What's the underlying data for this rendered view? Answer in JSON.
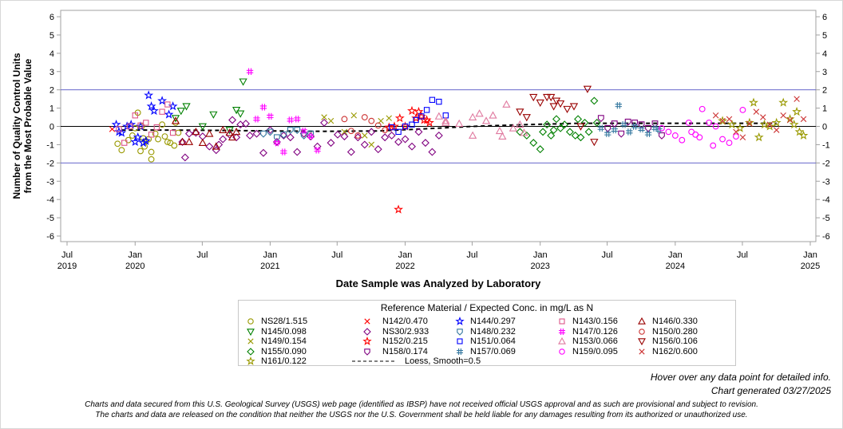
{
  "chart_data": {
    "type": "scatter",
    "title": "",
    "xlabel": "Date Sample was Analyzed by Laboratory",
    "ylabel": [
      "Number of Quality Control Units",
      "from the Most Probable Value"
    ],
    "ylim": [
      -6,
      6
    ],
    "xlim": [
      "2019-07-01",
      "2025-01-01"
    ],
    "y_ticks": [
      6,
      5,
      4,
      3,
      2,
      1,
      0,
      -1,
      -2,
      -3,
      -4,
      -5,
      -6
    ],
    "x_ticks": [
      {
        "date": "2019-07-01",
        "label1": "Jul",
        "label2": "2019"
      },
      {
        "date": "2020-01-01",
        "label1": "Jan",
        "label2": "2020"
      },
      {
        "date": "2020-07-01",
        "label1": "Jul",
        "label2": ""
      },
      {
        "date": "2021-01-01",
        "label1": "Jan",
        "label2": "2021"
      },
      {
        "date": "2021-07-01",
        "label1": "Jul",
        "label2": ""
      },
      {
        "date": "2022-01-01",
        "label1": "Jan",
        "label2": "2022"
      },
      {
        "date": "2022-07-01",
        "label1": "Jul",
        "label2": ""
      },
      {
        "date": "2023-01-01",
        "label1": "Jan",
        "label2": "2023"
      },
      {
        "date": "2023-07-01",
        "label1": "Jul",
        "label2": ""
      },
      {
        "date": "2024-01-01",
        "label1": "Jan",
        "label2": "2024"
      },
      {
        "date": "2024-07-01",
        "label1": "Jul",
        "label2": ""
      },
      {
        "date": "2025-01-01",
        "label1": "Jan",
        "label2": "2025"
      }
    ],
    "reference_lines": [
      {
        "y": 2,
        "color": "#6666cc"
      },
      {
        "y": 0,
        "color": "#000000"
      },
      {
        "y": -2,
        "color": "#6666cc"
      }
    ],
    "legend_title": "Reference Material / Expected Conc. in mg/L as N",
    "legend_placement": "bottom-center",
    "loess": {
      "name": "Loess, Smooth=0.5",
      "x": [
        2019.9,
        2020.2,
        2020.6,
        2021.0,
        2021.4,
        2021.8,
        2022.1,
        2022.5,
        2022.9,
        2023.3,
        2023.7,
        2024.1,
        2024.5,
        2024.75
      ],
      "y": [
        -0.2,
        -0.2,
        -0.22,
        -0.25,
        -0.27,
        -0.25,
        -0.15,
        0.0,
        0.1,
        0.17,
        0.17,
        0.17,
        0.17,
        0.17
      ]
    },
    "series": [
      {
        "name": "NS28/1.515",
        "marker": "circle",
        "color": "#999900",
        "x": [
          2019.87,
          2019.9,
          2019.95,
          2019.98,
          2020.0,
          2020.02,
          2020.04,
          2020.06,
          2020.07,
          2020.1,
          2020.12,
          2020.12,
          2020.15,
          2020.17,
          2020.2,
          2020.22,
          2020.24,
          2020.26,
          2020.29,
          2020.3,
          2020.32,
          2020.08,
          2020.05
        ],
        "y": [
          -0.95,
          -1.3,
          -0.75,
          -0.5,
          -0.1,
          0.75,
          -1.35,
          -0.65,
          -1.1,
          -0.7,
          -1.4,
          -1.8,
          -0.4,
          -0.7,
          0.1,
          -0.55,
          -0.85,
          -0.9,
          -1.05,
          0.2,
          -0.35,
          -0.8,
          0.0
        ]
      },
      {
        "name": "N145/0.098",
        "marker": "triangle-down",
        "color": "#008000",
        "x": [
          2020.3,
          2020.34,
          2020.38,
          2020.5,
          2020.58,
          2020.7,
          2020.75,
          2020.78,
          2020.8
        ],
        "y": [
          0.45,
          0.85,
          1.1,
          0.0,
          0.65,
          -0.2,
          0.9,
          0.7,
          2.45
        ]
      },
      {
        "name": "N149/0.154",
        "marker": "x",
        "color": "#999900",
        "x": [
          2021.4,
          2021.45,
          2021.55,
          2021.62,
          2021.7,
          2021.75,
          2021.82,
          2021.88
        ],
        "y": [
          0.5,
          0.3,
          -0.3,
          0.6,
          -0.5,
          -1.0,
          0.3,
          0.45
        ]
      },
      {
        "name": "N155/0.090",
        "marker": "diamond",
        "color": "#008000",
        "x": [
          2022.85,
          2022.9,
          2022.95,
          2023.0,
          2023.02,
          2023.05,
          2023.08,
          2023.1,
          2023.12,
          2023.15,
          2023.18,
          2023.22,
          2023.26,
          2023.28,
          2023.3,
          2023.33,
          2023.36,
          2023.4,
          2023.42
        ],
        "y": [
          -0.3,
          -0.5,
          -0.9,
          -1.25,
          -0.3,
          0.1,
          -0.5,
          -0.2,
          0.4,
          -0.1,
          0.1,
          -0.3,
          -0.5,
          0.4,
          -0.6,
          0.2,
          -0.3,
          1.4,
          0.2
        ]
      },
      {
        "name": "N161/0.122",
        "marker": "star",
        "color": "#999900",
        "x": [
          2024.35,
          2024.42,
          2024.48,
          2024.55,
          2024.58,
          2024.62,
          2024.66,
          2024.7,
          2024.75,
          2024.8,
          2024.85,
          2024.88,
          2024.9,
          2024.92,
          2024.95
        ],
        "y": [
          0.3,
          0.1,
          -0.1,
          0.2,
          1.3,
          -0.6,
          0.1,
          0.0,
          0.2,
          1.3,
          0.4,
          0.1,
          0.8,
          -0.3,
          -0.5
        ]
      },
      {
        "name": "N142/0.470",
        "marker": "x",
        "color": "#ff0000",
        "x": [
          2019.83
        ],
        "y": [
          -0.15
        ]
      },
      {
        "name": "NS30/2.933",
        "marker": "diamond",
        "color": "#800080",
        "x": [
          2020.35,
          2020.37,
          2020.4,
          2020.45,
          2020.5,
          2020.55,
          2020.6,
          2020.62,
          2020.65,
          2020.7,
          2020.72,
          2020.75,
          2020.78,
          2020.82,
          2020.85,
          2020.9,
          2020.95,
          2021.0,
          2021.05,
          2021.1,
          2021.15,
          2021.2,
          2021.25,
          2021.3,
          2021.35,
          2021.4,
          2021.45,
          2021.5,
          2021.55,
          2021.6,
          2021.65,
          2021.7,
          2021.75,
          2021.8,
          2021.85,
          2021.9,
          2021.95,
          2022.0,
          2022.05,
          2022.1,
          2022.15,
          2022.2,
          2022.25
        ],
        "y": [
          -0.85,
          -1.7,
          -0.4,
          -0.35,
          -0.55,
          -1.1,
          -1.3,
          -1.0,
          -0.7,
          -0.45,
          0.35,
          -0.6,
          0.1,
          0.15,
          -0.5,
          -0.4,
          -1.45,
          -0.2,
          -0.85,
          -0.5,
          -0.6,
          -1.4,
          -0.4,
          -0.55,
          -1.1,
          0.2,
          -0.9,
          -0.45,
          -0.55,
          -1.4,
          -0.6,
          -1.0,
          -0.3,
          -1.25,
          -0.6,
          -0.5,
          -0.85,
          -0.7,
          -1.1,
          -0.3,
          -0.9,
          -1.4,
          -0.5
        ]
      },
      {
        "name": "N152/0.215",
        "marker": "star",
        "color": "#ff0000",
        "x": [
          2021.88,
          2021.92,
          2021.96,
          2022.0,
          2022.05,
          2022.08,
          2022.1,
          2022.12,
          2022.14,
          2022.16,
          2022.18,
          2021.95
        ],
        "y": [
          -0.05,
          0.0,
          0.45,
          0.0,
          0.85,
          0.45,
          0.8,
          0.55,
          0.35,
          0.35,
          0.2,
          -4.55
        ]
      },
      {
        "name": "N158/0.174",
        "marker": "shield",
        "color": "#800080",
        "x": [
          2023.45,
          2023.5,
          2023.55,
          2023.6,
          2023.65,
          2023.7,
          2023.75,
          2023.8,
          2023.85,
          2023.9
        ],
        "y": [
          0.45,
          -0.1,
          0.15,
          -0.4,
          0.25,
          0.2,
          0.1,
          -0.1,
          0.15,
          -0.5
        ]
      },
      {
        "name": "N144/0.297",
        "marker": "star",
        "color": "#0000ff",
        "x": [
          2019.86,
          2019.88,
          2019.9,
          2019.94,
          2019.97,
          2020.0,
          2020.02,
          2020.04,
          2020.06,
          2020.08,
          2020.1,
          2020.12,
          2020.14,
          2020.2,
          2020.25,
          2020.28
        ],
        "y": [
          0.1,
          -0.3,
          -0.35,
          0.0,
          0.1,
          -0.85,
          -0.6,
          0.0,
          -0.9,
          -0.8,
          1.7,
          1.1,
          0.85,
          1.4,
          0.65,
          1.1
        ]
      },
      {
        "name": "N148/0.232",
        "marker": "shield",
        "color": "#33779f",
        "x": [
          2020.95,
          2021.0,
          2021.05,
          2021.1,
          2021.15,
          2021.2,
          2021.25,
          2021.3
        ],
        "y": [
          -0.4,
          -0.3,
          -0.6,
          -0.45,
          -0.2,
          -0.2,
          -0.5,
          -0.4
        ]
      },
      {
        "name": "N151/0.064",
        "marker": "square",
        "color": "#0000ff",
        "x": [
          2021.9,
          2021.95,
          2022.0,
          2022.05,
          2022.08,
          2022.12,
          2022.16,
          2022.2,
          2022.25,
          2022.3
        ],
        "y": [
          -0.05,
          -0.3,
          0.0,
          0.1,
          0.35,
          0.55,
          0.9,
          1.45,
          1.35,
          0.6
        ]
      },
      {
        "name": "N157/0.069",
        "marker": "hash",
        "color": "#33779f",
        "x": [
          2023.45,
          2023.5,
          2023.55,
          2023.58,
          2023.62,
          2023.66,
          2023.7,
          2023.75,
          2023.8,
          2023.85,
          2023.88
        ],
        "y": [
          -0.1,
          -0.4,
          -0.2,
          1.15,
          0.1,
          -0.3,
          0.0,
          -0.15,
          -0.4,
          -0.1,
          -0.2
        ]
      },
      {
        "name": "N143/0.156",
        "marker": "square",
        "color": "#dd5588",
        "x": [
          2019.88,
          2019.92,
          2019.96,
          2020.0,
          2020.04,
          2020.08,
          2020.12,
          2020.16,
          2020.2,
          2020.24,
          2020.28
        ],
        "y": [
          -0.15,
          -0.9,
          0.0,
          0.6,
          0.05,
          0.2,
          -0.45,
          -0.05,
          0.8,
          1.2,
          -0.35
        ]
      },
      {
        "name": "N147/0.126",
        "marker": "hash",
        "color": "#ff00ff",
        "x": [
          2020.85,
          2020.9,
          2020.95,
          2021.0,
          2021.05,
          2021.1,
          2021.15,
          2021.2,
          2021.25,
          2021.3,
          2021.35
        ],
        "y": [
          3.0,
          0.4,
          1.05,
          0.55,
          -0.9,
          -1.4,
          0.35,
          0.4,
          -0.25,
          -0.55,
          -1.3
        ]
      },
      {
        "name": "N153/0.066",
        "marker": "triangle",
        "color": "#e07aa0",
        "x": [
          2022.25,
          2022.3,
          2022.4,
          2022.5,
          2022.55,
          2022.6,
          2022.65,
          2022.7,
          2022.72,
          2022.75,
          2022.8,
          2022.85,
          2022.88,
          2022.3,
          2022.5
        ],
        "y": [
          0.55,
          0.3,
          0.15,
          0.5,
          0.7,
          0.3,
          0.6,
          -0.25,
          -0.55,
          1.2,
          -0.1,
          0.1,
          -0.35,
          0.2,
          -0.5
        ]
      },
      {
        "name": "N159/0.095",
        "marker": "circle",
        "color": "#ff00ff",
        "x": [
          2023.9,
          2023.95,
          2024.0,
          2024.05,
          2024.1,
          2024.12,
          2024.15,
          2024.18,
          2024.2,
          2024.25,
          2024.28,
          2024.3,
          2024.35,
          2024.4,
          2024.45,
          2024.5
        ],
        "y": [
          -0.1,
          -0.3,
          -0.5,
          -0.75,
          0.2,
          -0.3,
          -0.45,
          -0.6,
          0.95,
          0.2,
          -1.05,
          0.0,
          -0.7,
          -0.9,
          -0.55,
          0.9
        ]
      },
      {
        "name": "N146/0.330",
        "marker": "triangle",
        "color": "#990000",
        "x": [
          2020.3,
          2020.35,
          2020.4,
          2020.45,
          2020.5,
          2020.55,
          2020.6,
          2020.65,
          2020.7,
          2020.72,
          2020.75
        ],
        "y": [
          0.3,
          -0.85,
          -0.85,
          -0.3,
          -0.9,
          -0.4,
          -1.1,
          -0.2,
          -0.35,
          -0.6,
          -0.3
        ]
      },
      {
        "name": "N150/0.280",
        "marker": "circle",
        "color": "#cc3333",
        "x": [
          2021.55,
          2021.6,
          2021.65,
          2021.7,
          2021.75,
          2021.8,
          2021.85
        ],
        "y": [
          0.4,
          -0.25,
          -0.5,
          0.5,
          0.3,
          0.05,
          -0.2
        ]
      },
      {
        "name": "N156/0.106",
        "marker": "triangle-down",
        "color": "#990000",
        "x": [
          2022.85,
          2022.9,
          2022.95,
          2023.0,
          2023.05,
          2023.08,
          2023.1,
          2023.12,
          2023.15,
          2023.2,
          2023.25,
          2023.3,
          2023.35,
          2023.4
        ],
        "y": [
          0.8,
          0.5,
          1.6,
          1.3,
          1.6,
          1.6,
          1.1,
          1.4,
          1.25,
          0.95,
          1.1,
          0.0,
          2.05,
          -0.85
        ]
      },
      {
        "name": "N162/0.600",
        "marker": "x",
        "color": "#cc3333",
        "x": [
          2024.3,
          2024.35,
          2024.4,
          2024.45,
          2024.5,
          2024.55,
          2024.6,
          2024.65,
          2024.7,
          2024.75,
          2024.8,
          2024.85,
          2024.9,
          2024.95
        ],
        "y": [
          0.6,
          0.3,
          0.4,
          -0.3,
          -0.6,
          0.15,
          0.8,
          0.5,
          0.1,
          -0.2,
          0.6,
          0.35,
          1.5,
          0.4
        ]
      }
    ]
  },
  "legend": {
    "title": "Reference Material / Expected Conc. in mg/L as N",
    "rows": [
      [
        {
          "label": "NS28/1.515",
          "series": 0
        },
        {
          "label": "N142/0.470",
          "series": 5
        },
        {
          "label": "N144/0.297",
          "series": 9
        },
        {
          "label": "N143/0.156",
          "series": 13
        },
        {
          "label": "N146/0.330",
          "series": 17
        }
      ],
      [
        {
          "label": "N145/0.098",
          "series": 1
        },
        {
          "label": "NS30/2.933",
          "series": 6
        },
        {
          "label": "N148/0.232",
          "series": 10
        },
        {
          "label": "N147/0.126",
          "series": 14
        },
        {
          "label": "N150/0.280",
          "series": 18
        }
      ],
      [
        {
          "label": "N149/0.154",
          "series": 2
        },
        {
          "label": "N152/0.215",
          "series": 7
        },
        {
          "label": "N151/0.064",
          "series": 11
        },
        {
          "label": "N153/0.066",
          "series": 15
        },
        {
          "label": "N156/0.106",
          "series": 19
        }
      ],
      [
        {
          "label": "N155/0.090",
          "series": 3
        },
        {
          "label": "N158/0.174",
          "series": 8
        },
        {
          "label": "N157/0.069",
          "series": 12
        },
        {
          "label": "N159/0.095",
          "series": 16
        },
        {
          "label": "N162/0.600",
          "series": 20
        }
      ],
      [
        {
          "label": "N161/0.122",
          "series": 4
        },
        {
          "label": "Loess, Smooth=0.5",
          "series": "loess"
        }
      ]
    ]
  },
  "notes": {
    "hover": "Hover over any data point for detailed info.",
    "generated": "Chart generated 03/27/2025",
    "disclaimer1": "Charts and data secured from this U.S. Geological Survey (USGS) web page (identified as IBSP) have not received official USGS approval and as such are provisional and subject to revision.",
    "disclaimer2": "The charts and data are released on the condition that neither the USGS nor the U.S. Government shall be held liable for any damages resulting from its authorized or unauthorized use."
  }
}
